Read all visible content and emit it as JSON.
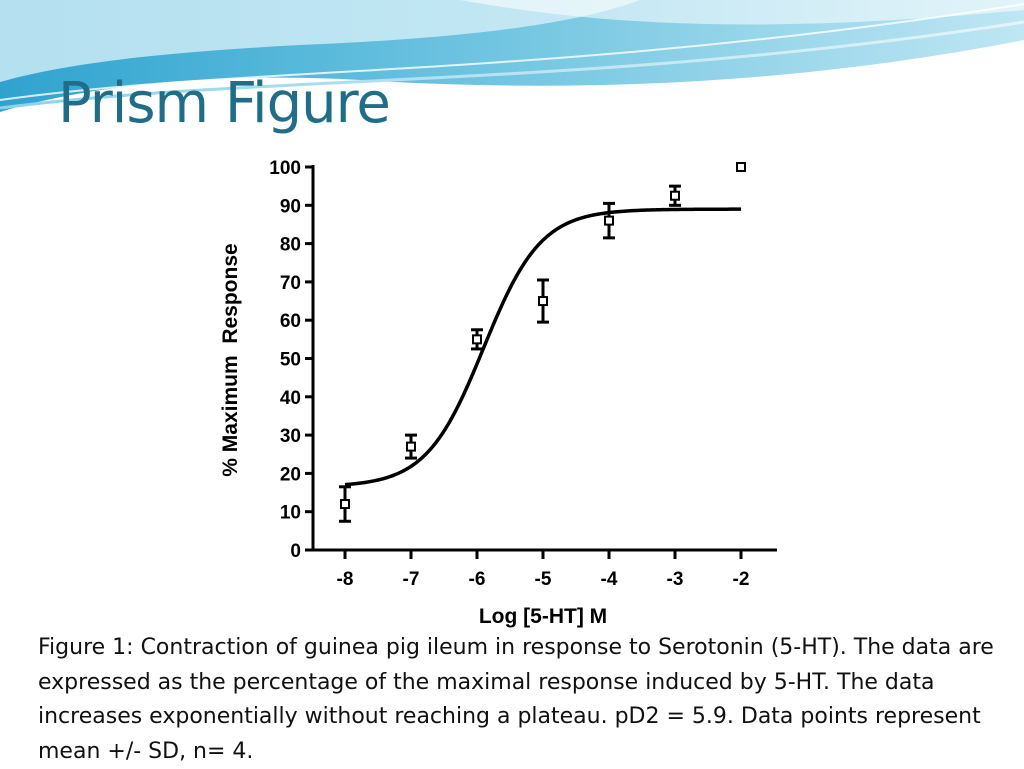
{
  "slide": {
    "title": "Prism Figure",
    "title_color": "#1f6d86",
    "caption": "Figure 1:  Contraction of guinea pig ileum in response to Serotonin (5-HT). The data are expressed as the percentage of the maximal response induced by 5-HT. The data increases exponentially without reaching a plateau. pD2 = 5.9. Data points represent mean +/- SD, n= 4."
  },
  "chart_data": {
    "type": "scatter",
    "title": "",
    "xlabel": "Log [5-HT] M",
    "ylabel": "% Maximum  Response",
    "xlim": [
      -8,
      -2
    ],
    "ylim": [
      0,
      100
    ],
    "x_ticks": [
      "-8",
      "-7",
      "-6",
      "-5",
      "-4",
      "-3",
      "-2"
    ],
    "y_ticks": [
      "0",
      "10",
      "20",
      "30",
      "40",
      "50",
      "60",
      "70",
      "80",
      "90",
      "100"
    ],
    "grid": false,
    "marker": "open-square",
    "points": [
      {
        "x": -8,
        "y": 12,
        "sd": 4.5
      },
      {
        "x": -7,
        "y": 27,
        "sd": 3
      },
      {
        "x": -6,
        "y": 55,
        "sd": 2.5
      },
      {
        "x": -5,
        "y": 65,
        "sd": 5.5
      },
      {
        "x": -4,
        "y": 86,
        "sd": 4.5
      },
      {
        "x": -3,
        "y": 92.5,
        "sd": 2.5
      },
      {
        "x": -2,
        "y": 100,
        "sd": 0
      }
    ],
    "fit_curve": {
      "model": "sigmoidal dose-response",
      "bottom": 16.5,
      "top": 89,
      "log_ec50": -5.9,
      "hill_slope": 1
    }
  }
}
